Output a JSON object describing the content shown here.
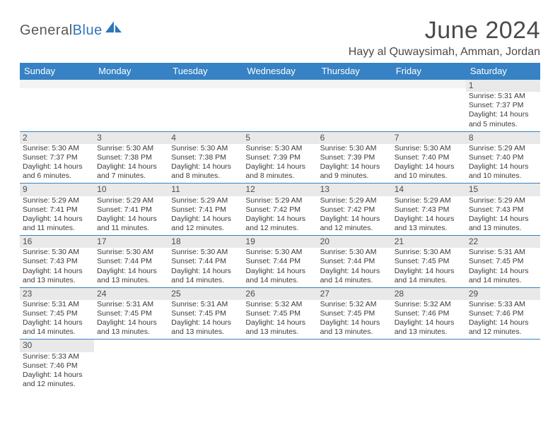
{
  "brand": {
    "word1": "General",
    "word2": "Blue",
    "gray_color": "#58585a",
    "blue_color": "#2f77bb",
    "sail_color": "#2f77bb"
  },
  "header": {
    "month_title": "June 2024",
    "location": "Hayy al Quwaysimah, Amman, Jordan",
    "title_color": "#4a4a4c"
  },
  "style": {
    "header_bg": "#3682c4",
    "header_text": "#ffffff",
    "row_divider": "#3682c4",
    "daynum_bg": "#e9e9e9",
    "daynum_color": "#4d4d4f",
    "body_text": "#3b3b3d",
    "blank_bg": "#f3f3f3",
    "page_bg": "#ffffff"
  },
  "day_headers": [
    "Sunday",
    "Monday",
    "Tuesday",
    "Wednesday",
    "Thursday",
    "Friday",
    "Saturday"
  ],
  "weeks": [
    [
      null,
      null,
      null,
      null,
      null,
      null,
      {
        "n": "1",
        "sunrise": "Sunrise: 5:31 AM",
        "sunset": "Sunset: 7:37 PM",
        "dl1": "Daylight: 14 hours",
        "dl2": "and 5 minutes."
      }
    ],
    [
      {
        "n": "2",
        "sunrise": "Sunrise: 5:30 AM",
        "sunset": "Sunset: 7:37 PM",
        "dl1": "Daylight: 14 hours",
        "dl2": "and 6 minutes."
      },
      {
        "n": "3",
        "sunrise": "Sunrise: 5:30 AM",
        "sunset": "Sunset: 7:38 PM",
        "dl1": "Daylight: 14 hours",
        "dl2": "and 7 minutes."
      },
      {
        "n": "4",
        "sunrise": "Sunrise: 5:30 AM",
        "sunset": "Sunset: 7:38 PM",
        "dl1": "Daylight: 14 hours",
        "dl2": "and 8 minutes."
      },
      {
        "n": "5",
        "sunrise": "Sunrise: 5:30 AM",
        "sunset": "Sunset: 7:39 PM",
        "dl1": "Daylight: 14 hours",
        "dl2": "and 8 minutes."
      },
      {
        "n": "6",
        "sunrise": "Sunrise: 5:30 AM",
        "sunset": "Sunset: 7:39 PM",
        "dl1": "Daylight: 14 hours",
        "dl2": "and 9 minutes."
      },
      {
        "n": "7",
        "sunrise": "Sunrise: 5:30 AM",
        "sunset": "Sunset: 7:40 PM",
        "dl1": "Daylight: 14 hours",
        "dl2": "and 10 minutes."
      },
      {
        "n": "8",
        "sunrise": "Sunrise: 5:29 AM",
        "sunset": "Sunset: 7:40 PM",
        "dl1": "Daylight: 14 hours",
        "dl2": "and 10 minutes."
      }
    ],
    [
      {
        "n": "9",
        "sunrise": "Sunrise: 5:29 AM",
        "sunset": "Sunset: 7:41 PM",
        "dl1": "Daylight: 14 hours",
        "dl2": "and 11 minutes."
      },
      {
        "n": "10",
        "sunrise": "Sunrise: 5:29 AM",
        "sunset": "Sunset: 7:41 PM",
        "dl1": "Daylight: 14 hours",
        "dl2": "and 11 minutes."
      },
      {
        "n": "11",
        "sunrise": "Sunrise: 5:29 AM",
        "sunset": "Sunset: 7:41 PM",
        "dl1": "Daylight: 14 hours",
        "dl2": "and 12 minutes."
      },
      {
        "n": "12",
        "sunrise": "Sunrise: 5:29 AM",
        "sunset": "Sunset: 7:42 PM",
        "dl1": "Daylight: 14 hours",
        "dl2": "and 12 minutes."
      },
      {
        "n": "13",
        "sunrise": "Sunrise: 5:29 AM",
        "sunset": "Sunset: 7:42 PM",
        "dl1": "Daylight: 14 hours",
        "dl2": "and 12 minutes."
      },
      {
        "n": "14",
        "sunrise": "Sunrise: 5:29 AM",
        "sunset": "Sunset: 7:43 PM",
        "dl1": "Daylight: 14 hours",
        "dl2": "and 13 minutes."
      },
      {
        "n": "15",
        "sunrise": "Sunrise: 5:29 AM",
        "sunset": "Sunset: 7:43 PM",
        "dl1": "Daylight: 14 hours",
        "dl2": "and 13 minutes."
      }
    ],
    [
      {
        "n": "16",
        "sunrise": "Sunrise: 5:30 AM",
        "sunset": "Sunset: 7:43 PM",
        "dl1": "Daylight: 14 hours",
        "dl2": "and 13 minutes."
      },
      {
        "n": "17",
        "sunrise": "Sunrise: 5:30 AM",
        "sunset": "Sunset: 7:44 PM",
        "dl1": "Daylight: 14 hours",
        "dl2": "and 13 minutes."
      },
      {
        "n": "18",
        "sunrise": "Sunrise: 5:30 AM",
        "sunset": "Sunset: 7:44 PM",
        "dl1": "Daylight: 14 hours",
        "dl2": "and 14 minutes."
      },
      {
        "n": "19",
        "sunrise": "Sunrise: 5:30 AM",
        "sunset": "Sunset: 7:44 PM",
        "dl1": "Daylight: 14 hours",
        "dl2": "and 14 minutes."
      },
      {
        "n": "20",
        "sunrise": "Sunrise: 5:30 AM",
        "sunset": "Sunset: 7:44 PM",
        "dl1": "Daylight: 14 hours",
        "dl2": "and 14 minutes."
      },
      {
        "n": "21",
        "sunrise": "Sunrise: 5:30 AM",
        "sunset": "Sunset: 7:45 PM",
        "dl1": "Daylight: 14 hours",
        "dl2": "and 14 minutes."
      },
      {
        "n": "22",
        "sunrise": "Sunrise: 5:31 AM",
        "sunset": "Sunset: 7:45 PM",
        "dl1": "Daylight: 14 hours",
        "dl2": "and 14 minutes."
      }
    ],
    [
      {
        "n": "23",
        "sunrise": "Sunrise: 5:31 AM",
        "sunset": "Sunset: 7:45 PM",
        "dl1": "Daylight: 14 hours",
        "dl2": "and 14 minutes."
      },
      {
        "n": "24",
        "sunrise": "Sunrise: 5:31 AM",
        "sunset": "Sunset: 7:45 PM",
        "dl1": "Daylight: 14 hours",
        "dl2": "and 13 minutes."
      },
      {
        "n": "25",
        "sunrise": "Sunrise: 5:31 AM",
        "sunset": "Sunset: 7:45 PM",
        "dl1": "Daylight: 14 hours",
        "dl2": "and 13 minutes."
      },
      {
        "n": "26",
        "sunrise": "Sunrise: 5:32 AM",
        "sunset": "Sunset: 7:45 PM",
        "dl1": "Daylight: 14 hours",
        "dl2": "and 13 minutes."
      },
      {
        "n": "27",
        "sunrise": "Sunrise: 5:32 AM",
        "sunset": "Sunset: 7:45 PM",
        "dl1": "Daylight: 14 hours",
        "dl2": "and 13 minutes."
      },
      {
        "n": "28",
        "sunrise": "Sunrise: 5:32 AM",
        "sunset": "Sunset: 7:46 PM",
        "dl1": "Daylight: 14 hours",
        "dl2": "and 13 minutes."
      },
      {
        "n": "29",
        "sunrise": "Sunrise: 5:33 AM",
        "sunset": "Sunset: 7:46 PM",
        "dl1": "Daylight: 14 hours",
        "dl2": "and 12 minutes."
      }
    ],
    [
      {
        "n": "30",
        "sunrise": "Sunrise: 5:33 AM",
        "sunset": "Sunset: 7:46 PM",
        "dl1": "Daylight: 14 hours",
        "dl2": "and 12 minutes."
      },
      null,
      null,
      null,
      null,
      null,
      null
    ]
  ]
}
